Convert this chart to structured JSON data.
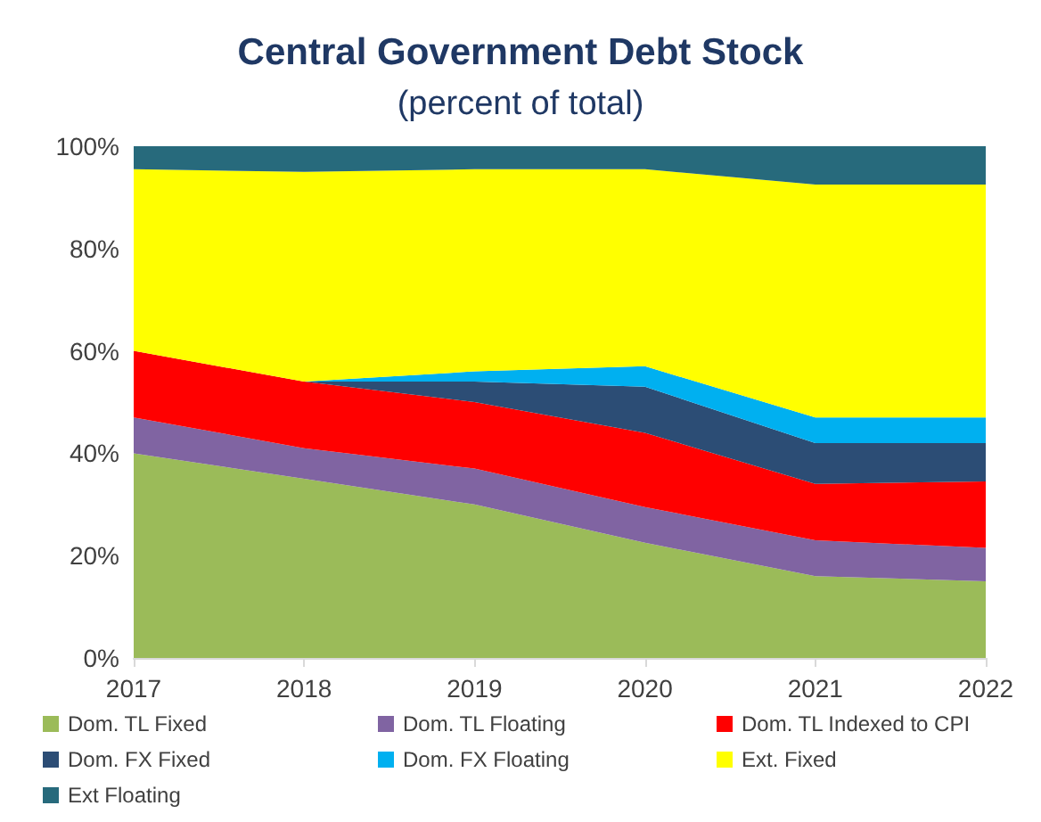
{
  "chart_data": {
    "type": "area",
    "title": "Central Government Debt Stock",
    "subtitle": "(percent of total)",
    "categories": [
      "2017",
      "2018",
      "2019",
      "2020",
      "2021",
      "2022"
    ],
    "stacked": true,
    "series": [
      {
        "name": "Dom. TL Fixed",
        "color": "#9bbb59",
        "values": [
          40,
          35,
          30,
          22.5,
          16,
          15
        ]
      },
      {
        "name": "Dom. TL Floating",
        "color": "#8064a2",
        "values": [
          7,
          6,
          7,
          7,
          7,
          6.5
        ]
      },
      {
        "name": "Dom. TL Indexed to CPI",
        "color": "#ff0000",
        "values": [
          13,
          13,
          13,
          14.5,
          11,
          13
        ]
      },
      {
        "name": "Dom. FX Fixed",
        "color": "#2c4d75",
        "values": [
          0,
          0,
          4,
          9,
          8,
          7.5
        ]
      },
      {
        "name": "Dom. FX Floating",
        "color": "#00b0f0",
        "values": [
          0,
          0,
          2,
          4,
          5,
          5
        ]
      },
      {
        "name": "Ext. Fixed",
        "color": "#ffff00",
        "values": [
          35.5,
          41,
          39.5,
          38.5,
          45.5,
          45.5
        ]
      },
      {
        "name": "Ext Floating",
        "color": "#276a7c",
        "values": [
          4.5,
          5,
          4.5,
          4.5,
          7.5,
          7.5
        ]
      }
    ],
    "ylim": [
      0,
      100
    ],
    "yticks": [
      {
        "value": 0,
        "label": "0%"
      },
      {
        "value": 20,
        "label": "20%"
      },
      {
        "value": 40,
        "label": "40%"
      },
      {
        "value": 60,
        "label": "60%"
      },
      {
        "value": 80,
        "label": "80%"
      },
      {
        "value": 100,
        "label": "100%"
      }
    ],
    "grid": false,
    "legend": "bottom"
  }
}
